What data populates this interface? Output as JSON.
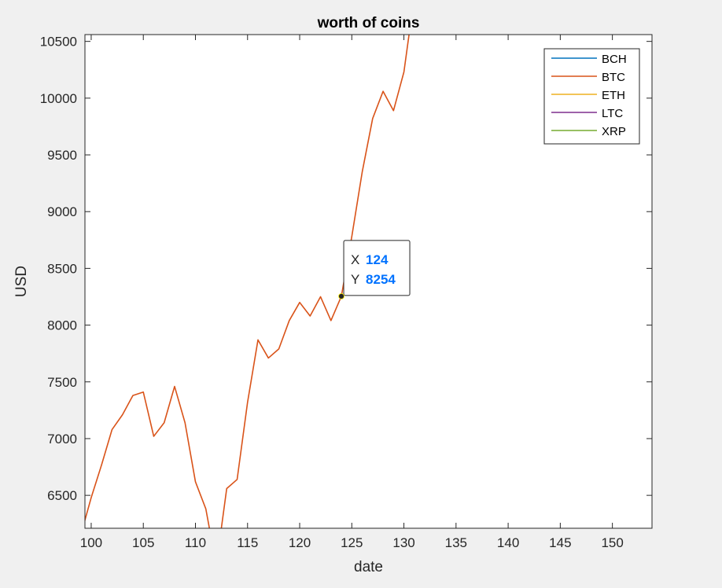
{
  "chart_data": {
    "type": "line",
    "title": "worth of coins",
    "xlabel": "date",
    "ylabel": "USD",
    "xlim": [
      99.4,
      153.8
    ],
    "ylim": [
      6210,
      10560
    ],
    "xticks": [
      100,
      105,
      110,
      115,
      120,
      125,
      130,
      135,
      140,
      145,
      150
    ],
    "yticks": [
      6500,
      7000,
      7500,
      8000,
      8500,
      9000,
      9500,
      10000,
      10500
    ],
    "grid": false,
    "legend_position": "top-right",
    "series": [
      {
        "name": "BCH",
        "color": "#0072bd",
        "x": [],
        "y": []
      },
      {
        "name": "BTC",
        "color": "#d95319",
        "x": [
          99,
          100,
          101,
          102,
          103,
          104,
          105,
          106,
          107,
          108,
          109,
          110,
          111,
          112,
          113,
          114,
          115,
          116,
          117,
          118,
          119,
          120,
          121,
          122,
          123,
          124,
          125,
          126,
          127,
          128,
          129,
          130,
          131
        ],
        "y": [
          6150,
          6480,
          6770,
          7080,
          7210,
          7380,
          7410,
          7020,
          7140,
          7460,
          7140,
          6620,
          6380,
          5880,
          6560,
          6640,
          7320,
          7870,
          7710,
          7790,
          8040,
          8200,
          8080,
          8250,
          8040,
          8254,
          8780,
          9350,
          9820,
          10060,
          9890,
          10230,
          10900
        ]
      },
      {
        "name": "ETH",
        "color": "#edb120",
        "x": [],
        "y": []
      },
      {
        "name": "LTC",
        "color": "#7e2f8e",
        "x": [],
        "y": []
      },
      {
        "name": "XRP",
        "color": "#77ac30",
        "x": [],
        "y": []
      }
    ],
    "datatip": {
      "x_label": "X",
      "x_value": "124",
      "y_label": "Y",
      "y_value": "8254",
      "x": 124,
      "y": 8254
    }
  }
}
